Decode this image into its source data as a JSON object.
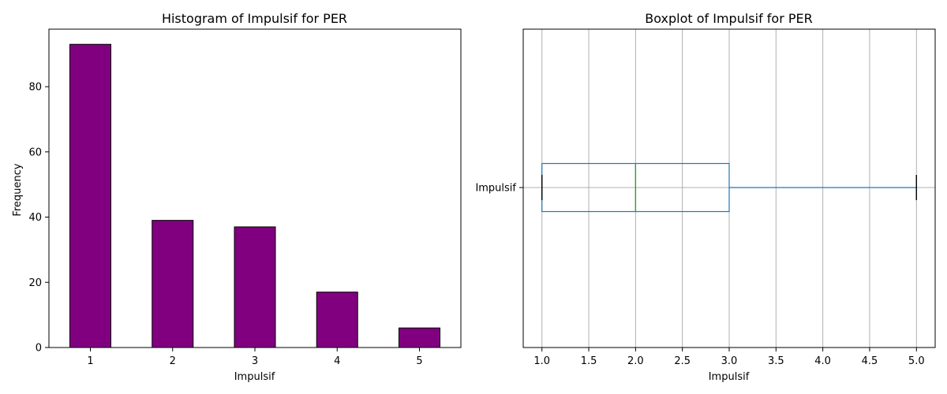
{
  "chart_data": [
    {
      "type": "bar",
      "title": "Histogram of Impulsif for PER",
      "xlabel": "Impulsif",
      "ylabel": "Frequency",
      "categories": [
        "1",
        "2",
        "3",
        "4",
        "5"
      ],
      "values": [
        93,
        39,
        37,
        17,
        6
      ],
      "ylim": [
        0,
        97.65
      ],
      "yticks": [
        0,
        20,
        40,
        60,
        80
      ],
      "bar_color": "#800080",
      "edge_color": "#000000",
      "grid": false
    },
    {
      "type": "boxplot",
      "title": "Boxplot of Impulsif for PER",
      "xlabel": "Impulsif",
      "category": "Impulsif",
      "orientation": "horizontal",
      "whisker_low": 1.0,
      "q1": 1.0,
      "median": 2.0,
      "q3": 3.0,
      "whisker_high": 5.0,
      "xlim": [
        0.8,
        5.2
      ],
      "xticks": [
        "1.0",
        "1.5",
        "2.0",
        "2.5",
        "3.0",
        "3.5",
        "4.0",
        "4.5",
        "5.0"
      ],
      "box_color": "#1f77b4",
      "median_color": "#2ca02c",
      "cap_color": "#000000",
      "grid": true
    }
  ]
}
